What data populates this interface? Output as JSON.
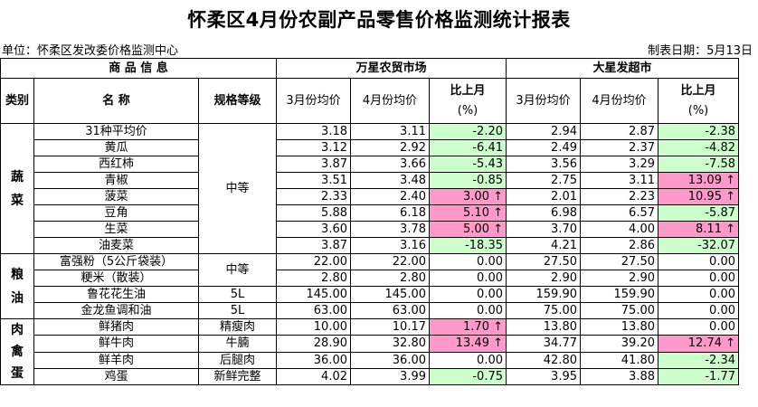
{
  "title": "怀柔区4月份农副产品零售价格监测统计报表",
  "unit": "单位：怀柔区发改委价格监测中心",
  "date": "制表日期：5月13日",
  "headers": {
    "product_info": "商 品 信 息",
    "market_a": "万星农贸市场",
    "market_b": "大星发超市",
    "category": "类别",
    "name": "名 称",
    "spec": "规格等级",
    "mar_avg": "3月份均价",
    "apr_avg": "4月份均价",
    "mom": "比上月",
    "mom_unit": "(%)"
  },
  "groups": [
    {
      "category": "蔬菜",
      "rows": [
        {
          "name": "31种平均价",
          "spec": "",
          "a_mar": "3.18",
          "a_apr": "3.11",
          "a_chg": "-2.20",
          "b_mar": "2.94",
          "b_apr": "2.87",
          "b_chg": "-2.38"
        },
        {
          "name": "黄瓜",
          "spec": "",
          "a_mar": "3.12",
          "a_apr": "2.92",
          "a_chg": "-6.41",
          "b_mar": "2.49",
          "b_apr": "2.37",
          "b_chg": "-4.82"
        },
        {
          "name": "西红柿",
          "spec": "",
          "a_mar": "3.87",
          "a_apr": "3.66",
          "a_chg": "-5.43",
          "b_mar": "3.56",
          "b_apr": "3.29",
          "b_chg": "-7.58"
        },
        {
          "name": "青椒",
          "spec": "中等",
          "a_mar": "3.51",
          "a_apr": "3.48",
          "a_chg": "-0.85",
          "b_mar": "2.75",
          "b_apr": "3.11",
          "b_chg": "13.09 ↑"
        },
        {
          "name": "菠菜",
          "spec": "",
          "a_mar": "2.33",
          "a_apr": "2.40",
          "a_chg": "3.00 ↑",
          "b_mar": "2.01",
          "b_apr": "2.23",
          "b_chg": "10.95 ↑"
        },
        {
          "name": "豆角",
          "spec": "",
          "a_mar": "5.88",
          "a_apr": "6.18",
          "a_chg": "5.10 ↑",
          "b_mar": "6.98",
          "b_apr": "6.57",
          "b_chg": "-5.87"
        },
        {
          "name": "生菜",
          "spec": "",
          "a_mar": "3.60",
          "a_apr": "3.78",
          "a_chg": "5.00 ↑",
          "b_mar": "3.70",
          "b_apr": "4.00",
          "b_chg": "8.11 ↑"
        },
        {
          "name": "油麦菜",
          "spec": "",
          "a_mar": "3.87",
          "a_apr": "3.16",
          "a_chg": "-18.35",
          "b_mar": "4.21",
          "b_apr": "2.86",
          "b_chg": "-32.07"
        }
      ]
    },
    {
      "category": "粮油",
      "rows": [
        {
          "name": "富强粉（5公斤袋装）",
          "spec": "中等",
          "a_mar": "22.00",
          "a_apr": "22.00",
          "a_chg": "0.00",
          "b_mar": "27.50",
          "b_apr": "27.50",
          "b_chg": "0.00"
        },
        {
          "name": "粳米（散装）",
          "spec": "",
          "a_mar": "2.80",
          "a_apr": "2.80",
          "a_chg": "0.00",
          "b_mar": "2.90",
          "b_apr": "2.90",
          "b_chg": "0.00"
        },
        {
          "name": "鲁花花生油",
          "spec": "5L",
          "a_mar": "145.00",
          "a_apr": "145.00",
          "a_chg": "0.00",
          "b_mar": "159.90",
          "b_apr": "159.90",
          "b_chg": "0.00"
        },
        {
          "name": "金龙鱼调和油",
          "spec": "5L",
          "a_mar": "63.00",
          "a_apr": "63.00",
          "a_chg": "0.00",
          "b_mar": "75.00",
          "b_apr": "75.00",
          "b_chg": "0.00"
        }
      ]
    },
    {
      "category": "肉禽蛋",
      "rows": [
        {
          "name": "鲜猪肉",
          "spec": "精瘦肉",
          "a_mar": "10.00",
          "a_apr": "10.17",
          "a_chg": "1.70 ↑",
          "b_mar": "13.80",
          "b_apr": "13.80",
          "b_chg": "0.00"
        },
        {
          "name": "鲜牛肉",
          "spec": "牛腩",
          "a_mar": "28.90",
          "a_apr": "32.80",
          "a_chg": "13.49 ↑",
          "b_mar": "34.77",
          "b_apr": "39.20",
          "b_chg": "12.74 ↑"
        },
        {
          "name": "鲜羊肉",
          "spec": "后腿肉",
          "a_mar": "36.00",
          "a_apr": "36.00",
          "a_chg": "0.00",
          "b_mar": "42.80",
          "b_apr": "41.80",
          "b_chg": "-2.34"
        },
        {
          "name": "鸡蛋",
          "spec": "新鲜完整",
          "a_mar": "4.02",
          "a_apr": "3.99",
          "a_chg": "-0.75",
          "b_mar": "3.95",
          "b_apr": "3.88",
          "b_chg": "-1.77"
        }
      ]
    }
  ],
  "colors": {
    "increase": "#ff99cc",
    "decrease": "#ccffcc"
  }
}
